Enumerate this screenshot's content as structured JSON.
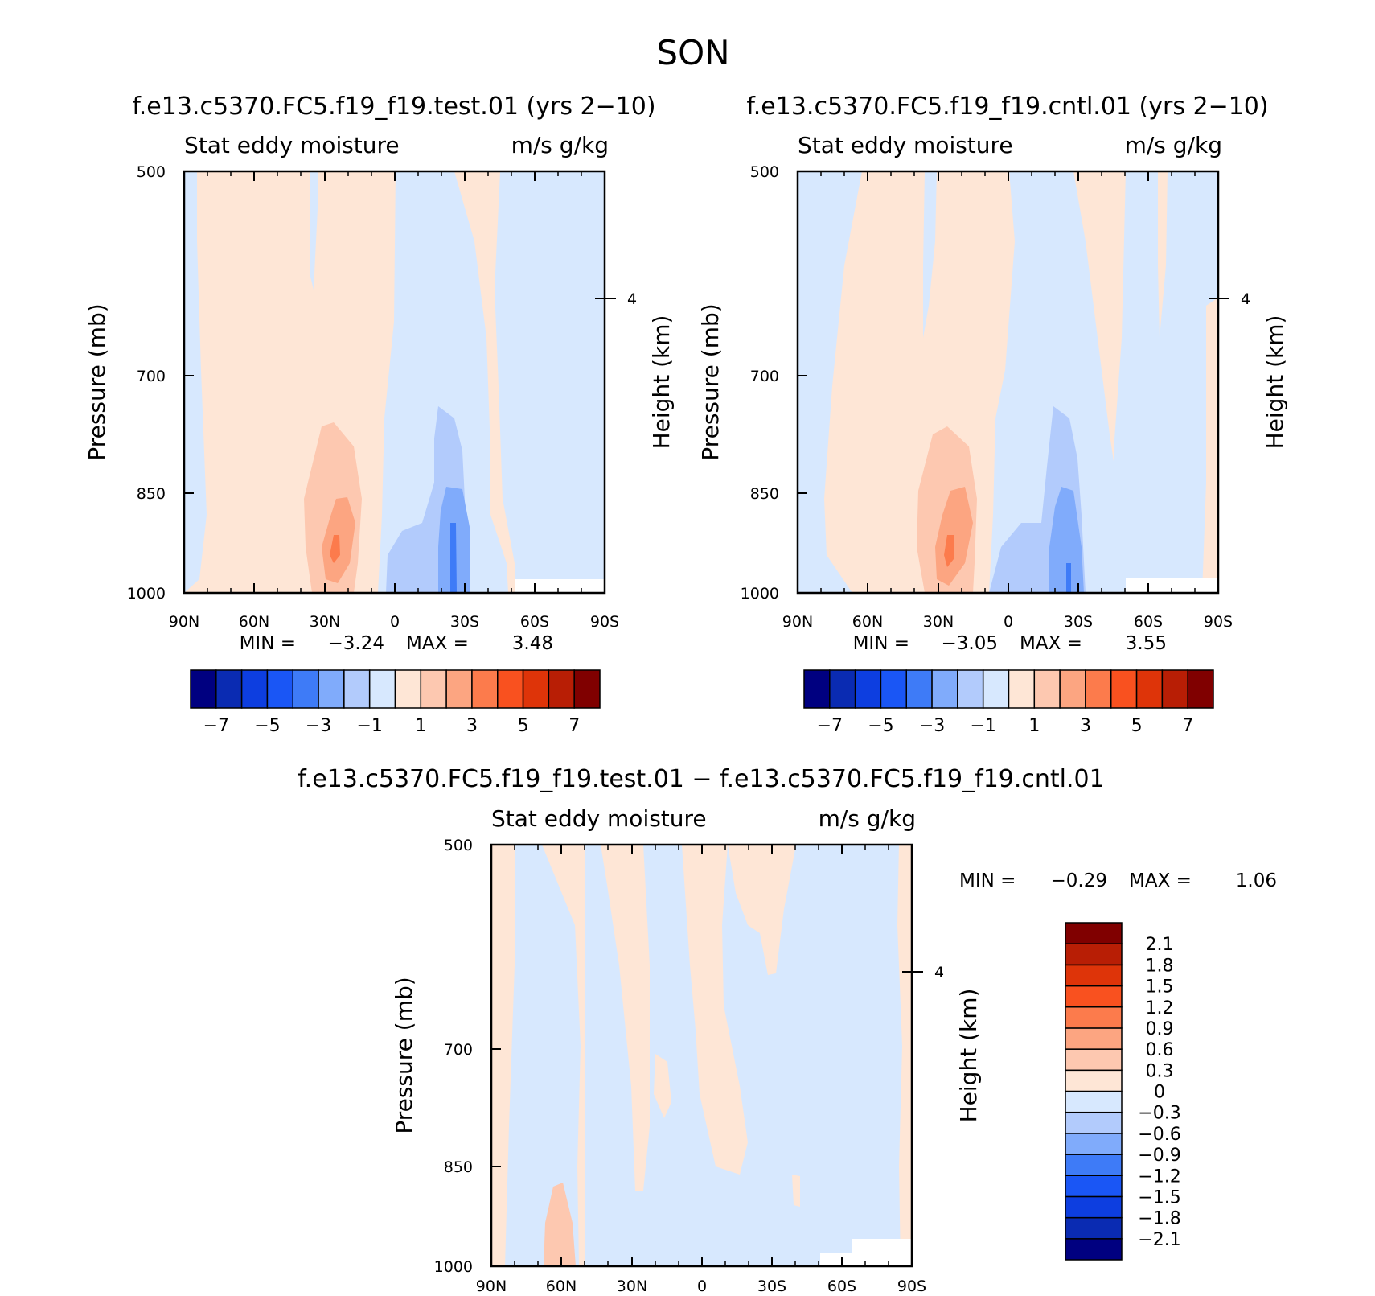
{
  "chart_data": {
    "type": "contour",
    "title": "SON",
    "colors": {
      "panel_scale": [
        "#000080",
        "#0a2bb2",
        "#0d3ee0",
        "#1a56f5",
        "#3e7bf7",
        "#80abfb",
        "#b2cbfc",
        "#d7e8fe",
        "#fee6d6",
        "#fdc8b0",
        "#fca581",
        "#fc7b4c",
        "#f9511f",
        "#de3409",
        "#b81e05",
        "#800000"
      ],
      "diff_scale": [
        "#000080",
        "#0a2bb2",
        "#0d3ee0",
        "#1a56f5",
        "#3e7bf7",
        "#80abfb",
        "#b2cbfc",
        "#d7e8fe",
        "#fee6d6",
        "#fdc8b0",
        "#fca581",
        "#fc7b4c",
        "#f9511f",
        "#de3409",
        "#b81e05",
        "#800000"
      ]
    },
    "panels": [
      {
        "id": "test",
        "title": "f.e13.c5370.FC5.f19_f19.test.01 (yrs 2−10)",
        "left_label": "Stat eddy moisture",
        "right_label": "m/s g/kg",
        "ylabel": "Pressure (mb)",
        "ylabel_right": "Height (km)",
        "yticks": [
          "500",
          "700",
          "850",
          "1000"
        ],
        "yticks_right": [
          "4"
        ],
        "xticks": [
          "90N",
          "60N",
          "30N",
          "0",
          "30S",
          "60S",
          "90S"
        ],
        "min_label": "MIN =",
        "min_value": "−3.24",
        "max_label": "MAX =",
        "max_value": "3.48",
        "colorbar_labels": [
          "−7",
          "−5",
          "−3",
          "−1",
          "1",
          "3",
          "5",
          "7"
        ]
      },
      {
        "id": "cntl",
        "title": "f.e13.c5370.FC5.f19_f19.cntl.01 (yrs 2−10)",
        "left_label": "Stat eddy moisture",
        "right_label": "m/s g/kg",
        "ylabel": "Pressure (mb)",
        "ylabel_right": "Height (km)",
        "yticks": [
          "500",
          "700",
          "850",
          "1000"
        ],
        "yticks_right": [
          "4"
        ],
        "xticks": [
          "90N",
          "60N",
          "30N",
          "0",
          "30S",
          "60S",
          "90S"
        ],
        "min_label": "MIN =",
        "min_value": "−3.05",
        "max_label": "MAX =",
        "max_value": "3.55",
        "colorbar_labels": [
          "−7",
          "−5",
          "−3",
          "−1",
          "1",
          "3",
          "5",
          "7"
        ]
      },
      {
        "id": "diff",
        "title": "f.e13.c5370.FC5.f19_f19.test.01 − f.e13.c5370.FC5.f19_f19.cntl.01",
        "left_label": "Stat eddy moisture",
        "right_label": "m/s g/kg",
        "ylabel": "Pressure (mb)",
        "ylabel_right": "Height (km)",
        "yticks": [
          "500",
          "700",
          "850",
          "1000"
        ],
        "yticks_right": [
          "4"
        ],
        "xticks": [
          "90N",
          "60N",
          "30N",
          "0",
          "30S",
          "60S",
          "90S"
        ],
        "min_label": "MIN =",
        "min_value": "−0.29",
        "max_label": "MAX =",
        "max_value": "1.06",
        "colorbar_labels": [
          "2.1",
          "1.8",
          "1.5",
          "1.2",
          "0.9",
          "0.6",
          "0.3",
          "0",
          "−0.3",
          "−0.6",
          "−0.9",
          "−1.2",
          "−1.5",
          "−1.8",
          "−2.1"
        ]
      }
    ]
  }
}
